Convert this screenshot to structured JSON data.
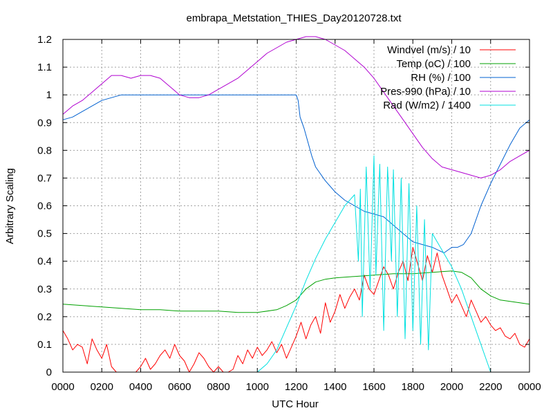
{
  "chart_data": {
    "type": "line",
    "title": "embrapa_Metstation_THIES_Day20120728.txt",
    "xlabel": "UTC Hour",
    "ylabel": "Arbitrary Scaling",
    "xlim": [
      0,
      24
    ],
    "ylim": [
      0,
      1.2
    ],
    "grid": true,
    "legend": "top-right",
    "x_ticks": [
      {
        "value": 0,
        "label": "0000"
      },
      {
        "value": 2,
        "label": "0200"
      },
      {
        "value": 4,
        "label": "0400"
      },
      {
        "value": 6,
        "label": "0600"
      },
      {
        "value": 8,
        "label": "0800"
      },
      {
        "value": 10,
        "label": "1000"
      },
      {
        "value": 12,
        "label": "1200"
      },
      {
        "value": 14,
        "label": "1400"
      },
      {
        "value": 16,
        "label": "1600"
      },
      {
        "value": 18,
        "label": "1800"
      },
      {
        "value": 20,
        "label": "2000"
      },
      {
        "value": 22,
        "label": "2200"
      },
      {
        "value": 24,
        "label": "0000"
      }
    ],
    "y_ticks": [
      {
        "value": 0,
        "label": "0"
      },
      {
        "value": 0.1,
        "label": "0.1"
      },
      {
        "value": 0.2,
        "label": "0.2"
      },
      {
        "value": 0.3,
        "label": "0.3"
      },
      {
        "value": 0.4,
        "label": "0.4"
      },
      {
        "value": 0.5,
        "label": "0.5"
      },
      {
        "value": 0.6,
        "label": "0.6"
      },
      {
        "value": 0.7,
        "label": "0.7"
      },
      {
        "value": 0.8,
        "label": "0.8"
      },
      {
        "value": 0.9,
        "label": "0.9"
      },
      {
        "value": 1.0,
        "label": "1"
      },
      {
        "value": 1.1,
        "label": "1.1"
      },
      {
        "value": 1.2,
        "label": "1.2"
      }
    ],
    "series": [
      {
        "name": "Windvel (m/s) / 10",
        "color": "#ff0000",
        "x": [
          0,
          0.25,
          0.5,
          0.75,
          1,
          1.25,
          1.5,
          1.75,
          2,
          2.25,
          2.5,
          2.75,
          3,
          3.25,
          3.5,
          3.75,
          4,
          4.25,
          4.5,
          4.75,
          5,
          5.25,
          5.5,
          5.75,
          6,
          6.25,
          6.5,
          6.75,
          7,
          7.25,
          7.5,
          7.75,
          8,
          8.25,
          8.5,
          8.75,
          9,
          9.25,
          9.5,
          9.75,
          10,
          10.25,
          10.5,
          10.75,
          11,
          11.25,
          11.5,
          11.75,
          12,
          12.25,
          12.5,
          12.75,
          13,
          13.25,
          13.5,
          13.75,
          14,
          14.25,
          14.5,
          14.75,
          15,
          15.25,
          15.5,
          15.75,
          16,
          16.25,
          16.5,
          16.75,
          17,
          17.25,
          17.5,
          17.75,
          18,
          18.25,
          18.5,
          18.75,
          19,
          19.25,
          19.5,
          19.75,
          20,
          20.25,
          20.5,
          20.75,
          21,
          21.25,
          21.5,
          21.75,
          22,
          22.25,
          22.5,
          22.75,
          23,
          23.25,
          23.5,
          23.75,
          24
        ],
        "y": [
          0.15,
          0.12,
          0.08,
          0.1,
          0.09,
          0.03,
          0.12,
          0.08,
          0.05,
          0.1,
          0.02,
          0,
          0,
          0,
          0,
          0,
          0.02,
          0.05,
          0.01,
          0.03,
          0.06,
          0.08,
          0.05,
          0.1,
          0.06,
          0.04,
          0,
          0.03,
          0.07,
          0.05,
          0.02,
          0,
          0.02,
          0,
          0,
          0.01,
          0.06,
          0.03,
          0.08,
          0.05,
          0.09,
          0.06,
          0.08,
          0.11,
          0.07,
          0.1,
          0.05,
          0.09,
          0.13,
          0.18,
          0.12,
          0.17,
          0.2,
          0.14,
          0.25,
          0.18,
          0.22,
          0.28,
          0.23,
          0.27,
          0.3,
          0.26,
          0.35,
          0.3,
          0.28,
          0.33,
          0.38,
          0.35,
          0.3,
          0.36,
          0.4,
          0.33,
          0.45,
          0.39,
          0.33,
          0.42,
          0.36,
          0.43,
          0.35,
          0.3,
          0.25,
          0.28,
          0.24,
          0.2,
          0.26,
          0.22,
          0.18,
          0.2,
          0.17,
          0.15,
          0.16,
          0.13,
          0.12,
          0.14,
          0.1,
          0.09,
          0.12
        ]
      },
      {
        "name": "Temp (oC) / 100",
        "color": "#00a000",
        "x": [
          0,
          1,
          2,
          3,
          4,
          5,
          6,
          7,
          8,
          9,
          10,
          11,
          11.5,
          12,
          12.5,
          13,
          13.5,
          14,
          15,
          16,
          17,
          18,
          19,
          20,
          20.5,
          21,
          21.5,
          22,
          22.5,
          23,
          23.5,
          24
        ],
        "y": [
          0.245,
          0.24,
          0.235,
          0.23,
          0.225,
          0.225,
          0.22,
          0.22,
          0.22,
          0.215,
          0.215,
          0.225,
          0.24,
          0.26,
          0.3,
          0.325,
          0.335,
          0.34,
          0.345,
          0.35,
          0.355,
          0.355,
          0.36,
          0.365,
          0.36,
          0.34,
          0.3,
          0.275,
          0.26,
          0.255,
          0.25,
          0.245
        ]
      },
      {
        "name": "RH (%) / 100",
        "color": "#0060d0",
        "x": [
          0,
          0.5,
          1,
          1.5,
          2,
          2.5,
          3,
          4,
          6,
          8,
          10,
          11,
          11.5,
          12,
          12.1,
          12.2,
          12.4,
          12.6,
          12.8,
          13,
          13.2,
          13.5,
          14,
          14.5,
          15,
          15.5,
          16,
          16.5,
          17,
          17.5,
          18,
          18.5,
          19,
          19.3,
          19.6,
          20,
          20.3,
          20.6,
          21,
          21.5,
          22,
          22.5,
          23,
          23.5,
          24
        ],
        "y": [
          0.91,
          0.92,
          0.94,
          0.96,
          0.98,
          0.99,
          1.0,
          1.0,
          1.0,
          1.0,
          1.0,
          1.0,
          1.0,
          1.0,
          0.98,
          0.92,
          0.88,
          0.83,
          0.78,
          0.74,
          0.72,
          0.69,
          0.65,
          0.62,
          0.6,
          0.58,
          0.57,
          0.56,
          0.53,
          0.5,
          0.47,
          0.46,
          0.45,
          0.44,
          0.43,
          0.45,
          0.45,
          0.46,
          0.5,
          0.6,
          0.68,
          0.75,
          0.82,
          0.88,
          0.91
        ]
      },
      {
        "name": "Pres-990 (hPa) / 10",
        "color": "#b000d0",
        "x": [
          0,
          0.5,
          1,
          1.5,
          2,
          2.5,
          3,
          3.5,
          4,
          4.5,
          5,
          5.5,
          6,
          6.5,
          7,
          7.5,
          8,
          8.5,
          9,
          9.5,
          10,
          10.5,
          11,
          11.5,
          12,
          12.5,
          13,
          13.5,
          14,
          14.5,
          15,
          15.5,
          16,
          16.5,
          17,
          17.5,
          18,
          18.5,
          19,
          19.5,
          20,
          20.5,
          21,
          21.5,
          22,
          22.5,
          23,
          23.5,
          24
        ],
        "y": [
          0.93,
          0.96,
          0.98,
          1.01,
          1.04,
          1.07,
          1.07,
          1.06,
          1.07,
          1.07,
          1.06,
          1.03,
          1.0,
          0.99,
          0.99,
          1.0,
          1.02,
          1.04,
          1.06,
          1.09,
          1.12,
          1.15,
          1.17,
          1.19,
          1.2,
          1.21,
          1.21,
          1.2,
          1.18,
          1.16,
          1.13,
          1.1,
          1.06,
          1.01,
          0.96,
          0.91,
          0.86,
          0.81,
          0.77,
          0.74,
          0.73,
          0.72,
          0.71,
          0.7,
          0.71,
          0.73,
          0.76,
          0.78,
          0.8
        ]
      },
      {
        "name": "Rad (W/m2) / 1400",
        "color": "#00e0e0",
        "x": [
          10,
          10.5,
          11,
          11.5,
          12,
          12.5,
          13,
          13.5,
          14,
          14.5,
          15,
          15.2,
          15.3,
          15.4,
          15.6,
          15.8,
          16,
          16.1,
          16.3,
          16.5,
          16.7,
          16.9,
          17,
          17.2,
          17.4,
          17.6,
          17.8,
          18,
          18.2,
          18.4,
          18.6,
          18.8,
          19,
          19.5,
          20,
          20.5,
          21,
          21.5,
          22
        ],
        "y": [
          0.0,
          0.03,
          0.08,
          0.16,
          0.24,
          0.33,
          0.41,
          0.48,
          0.54,
          0.6,
          0.64,
          0.4,
          0.66,
          0.2,
          0.74,
          0.3,
          0.78,
          0.35,
          0.75,
          0.15,
          0.74,
          0.4,
          0.73,
          0.2,
          0.7,
          0.12,
          0.68,
          0.15,
          0.6,
          0.1,
          0.55,
          0.08,
          0.5,
          0.44,
          0.38,
          0.3,
          0.2,
          0.1,
          0.0
        ]
      }
    ]
  }
}
